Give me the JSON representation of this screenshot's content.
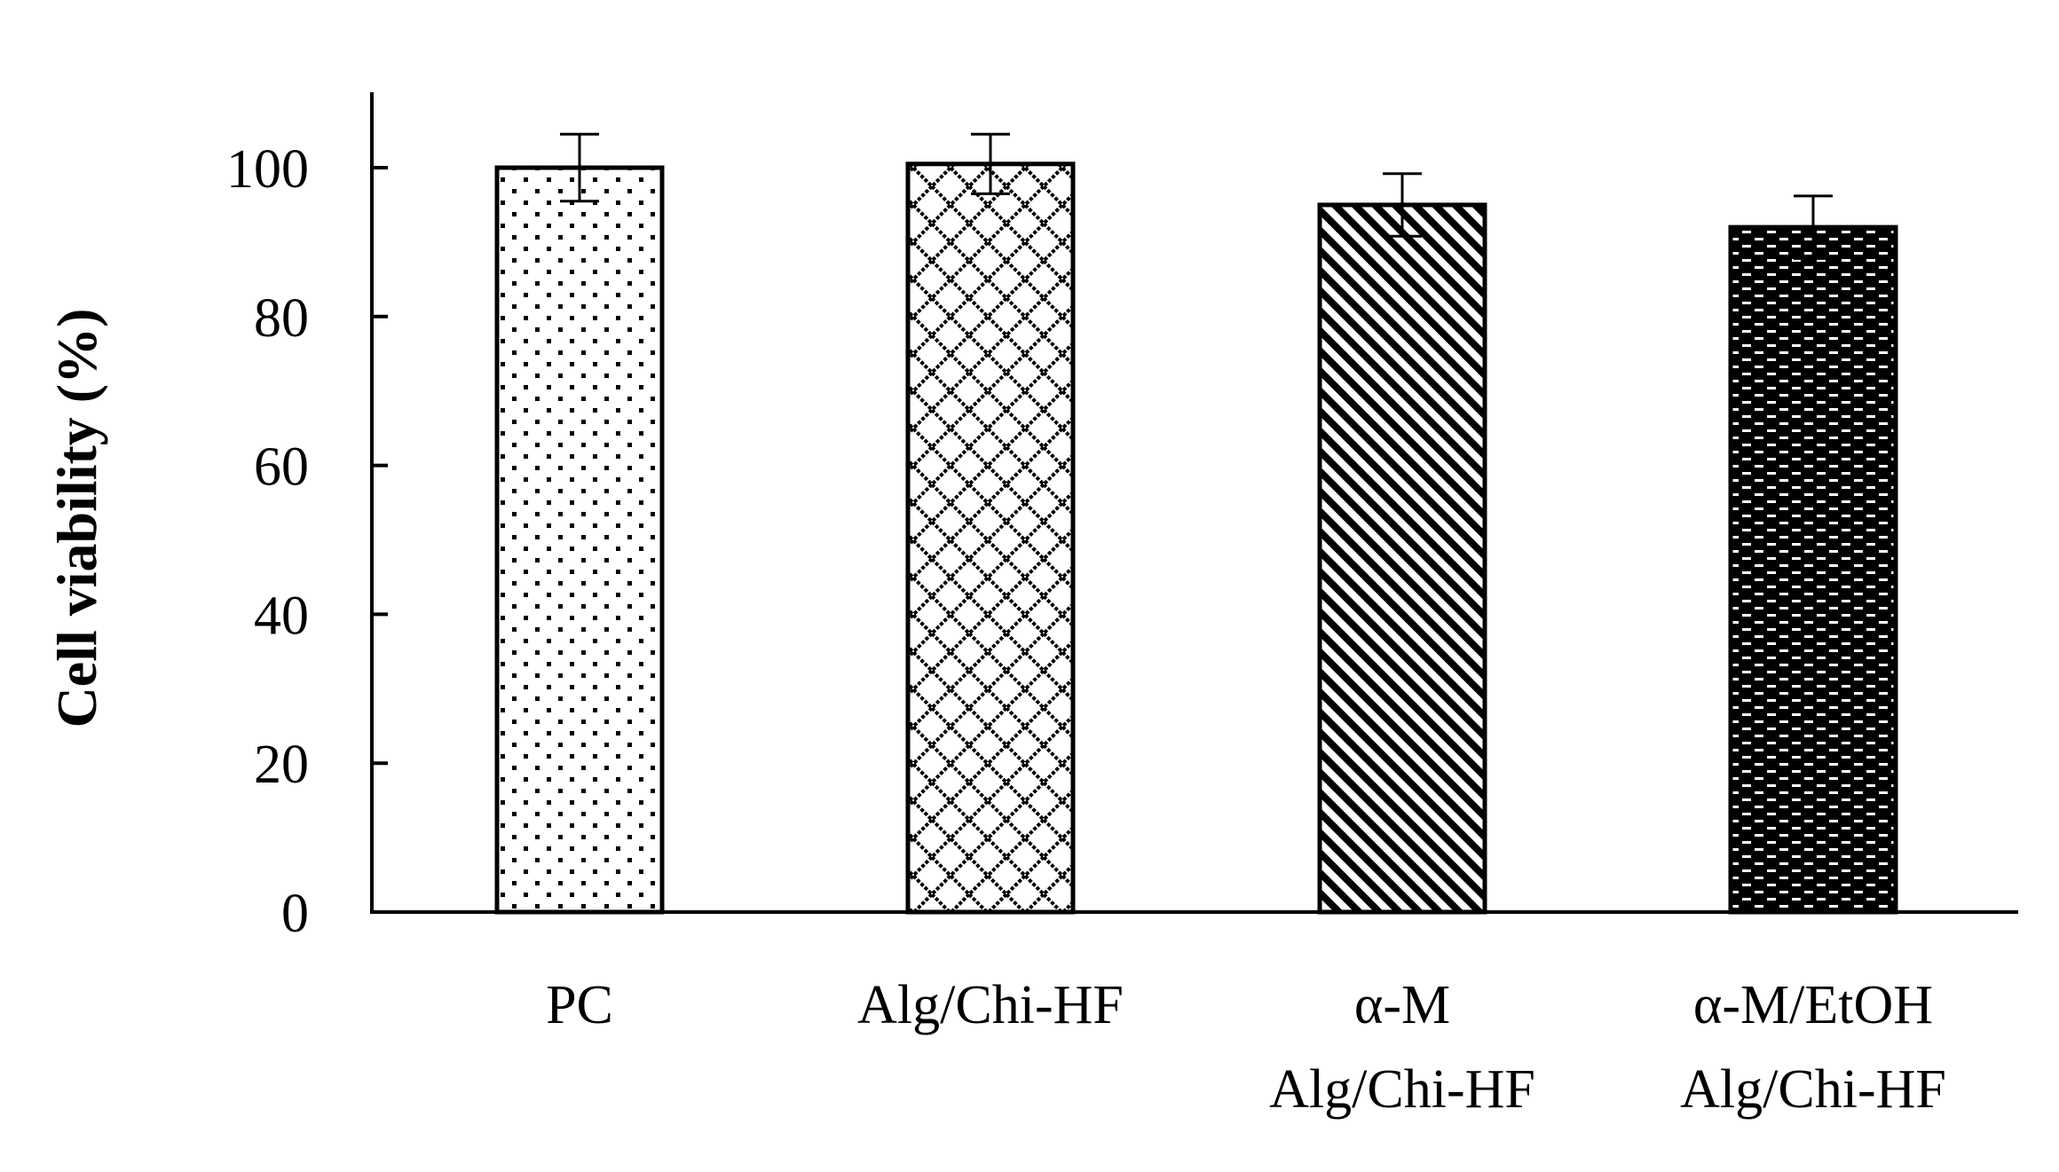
{
  "chart_data": {
    "type": "bar",
    "title": "",
    "xlabel": "",
    "ylabel": "Cell viability (%)",
    "ylim": [
      0,
      110
    ],
    "yticks": [
      "0",
      "20",
      "40",
      "60",
      "80",
      "100"
    ],
    "grid": false,
    "legend": "none",
    "categories": [
      [
        "PC"
      ],
      [
        "Alg/Chi-HF"
      ],
      [
        "α-M",
        "Alg/Chi-HF"
      ],
      [
        "α-M/EtOH",
        "Alg/Chi-HF"
      ]
    ],
    "values": [
      100,
      100.5,
      95,
      92
    ],
    "errors": [
      4.5,
      4,
      4.2,
      4.2
    ],
    "patterns": [
      "dots",
      "crosshatch-diamond",
      "diagonal-stripes",
      "brick-dashes"
    ],
    "colors": {
      "bar_outline": "#000000",
      "bar_fill": "#ffffff",
      "axis": "#000000"
    }
  }
}
